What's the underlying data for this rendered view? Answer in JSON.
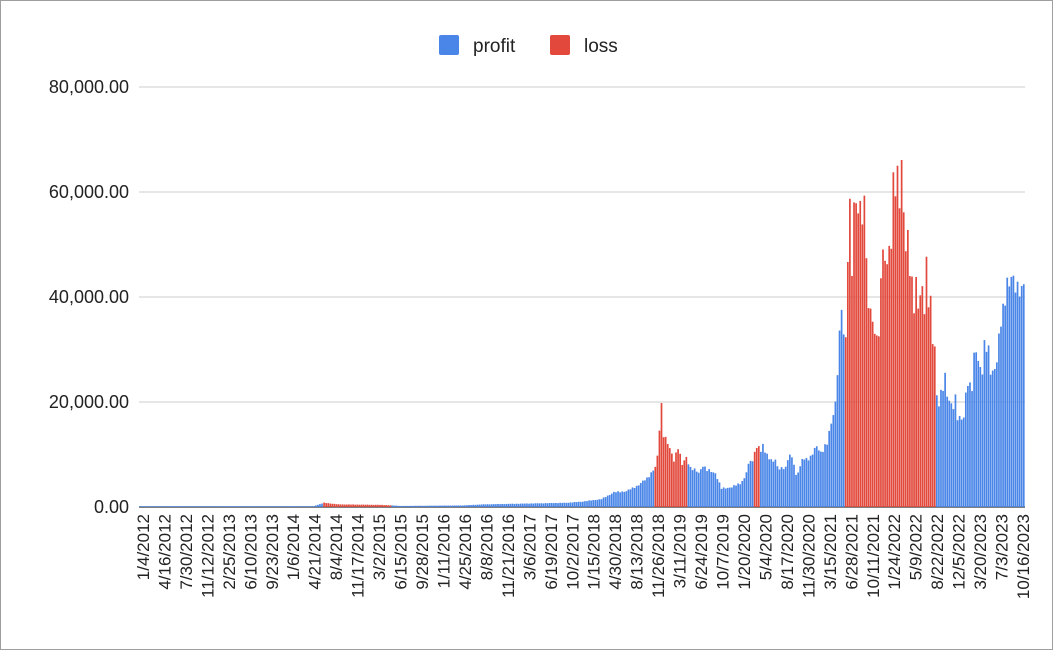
{
  "chart_data": {
    "type": "bar",
    "title": "",
    "xlabel": "",
    "ylabel": "",
    "ylim": [
      0,
      80000
    ],
    "y_ticks": [
      "0.00",
      "20,000.00",
      "40,000.00",
      "60,000.00",
      "80,000.00"
    ],
    "y_tick_values": [
      0,
      20000,
      40000,
      60000,
      80000
    ],
    "grid": true,
    "legend_position": "top-center",
    "x_tick_labels": [
      "1/4/2012",
      "4/16/2012",
      "7/30/2012",
      "11/12/2012",
      "2/25/2013",
      "6/10/2013",
      "9/23/2013",
      "1/6/2014",
      "4/21/2014",
      "8/4/2014",
      "11/17/2014",
      "3/2/2015",
      "6/15/2015",
      "9/28/2015",
      "1/11/2016",
      "4/25/2016",
      "8/8/2016",
      "11/21/2016",
      "3/6/2017",
      "6/19/2017",
      "10/2/2017",
      "1/15/2018",
      "4/30/2018",
      "8/13/2018",
      "11/26/2018",
      "3/11/2019",
      "6/24/2019",
      "10/7/2019",
      "1/20/2020",
      "5/4/2020",
      "8/17/2020",
      "11/30/2020",
      "3/15/2021",
      "6/28/2021",
      "10/11/2021",
      "1/24/2022",
      "5/9/2022",
      "8/22/2022",
      "12/5/2022",
      "3/20/2023",
      "7/3/2023",
      "10/16/2023"
    ],
    "series": [
      {
        "name": "profit",
        "color": "#4a86e8"
      },
      {
        "name": "loss",
        "color": "#e2483b"
      }
    ],
    "weekly_data": {
      "start_date": "2012-01-04",
      "interval_days": 7,
      "points": [
        [
          0,
          50,
          "profit"
        ],
        [
          84,
          80,
          "profit"
        ],
        [
          85,
          300,
          "profit"
        ],
        [
          89,
          800,
          "loss"
        ],
        [
          96,
          500,
          "loss"
        ],
        [
          117,
          400,
          "loss"
        ],
        [
          122,
          300,
          "profit"
        ],
        [
          126,
          200,
          "profit"
        ],
        [
          156,
          300,
          "profit"
        ],
        [
          166,
          500,
          "profit"
        ],
        [
          206,
          800,
          "profit"
        ],
        [
          213,
          1000,
          "profit"
        ],
        [
          223,
          1500,
          "profit"
        ],
        [
          229,
          2800,
          "profit"
        ],
        [
          235,
          3000,
          "profit"
        ],
        [
          241,
          4200,
          "profit"
        ],
        [
          245,
          5500,
          "profit"
        ],
        [
          248,
          7000,
          "profit"
        ],
        [
          249,
          7500,
          "loss"
        ],
        [
          250,
          9500,
          "loss"
        ],
        [
          251,
          15000,
          "loss"
        ],
        [
          252,
          19500,
          "loss"
        ],
        [
          253,
          14000,
          "loss"
        ],
        [
          256,
          11000,
          "loss"
        ],
        [
          258,
          9000,
          "loss"
        ],
        [
          260,
          11500,
          "loss"
        ],
        [
          262,
          8000,
          "loss"
        ],
        [
          264,
          9500,
          "loss"
        ],
        [
          265,
          8500,
          "profit"
        ],
        [
          266,
          7500,
          "profit"
        ],
        [
          270,
          6500,
          "profit"
        ],
        [
          272,
          8000,
          "profit"
        ],
        [
          274,
          7000,
          "profit"
        ],
        [
          278,
          6500,
          "profit"
        ],
        [
          280,
          4500,
          "profit"
        ],
        [
          281,
          3500,
          "profit"
        ],
        [
          286,
          3800,
          "profit"
        ],
        [
          290,
          4500,
          "profit"
        ],
        [
          292,
          5500,
          "profit"
        ],
        [
          295,
          9000,
          "profit"
        ],
        [
          296,
          8500,
          "profit"
        ],
        [
          297,
          11000,
          "loss"
        ],
        [
          299,
          11500,
          "loss"
        ],
        [
          300,
          10500,
          "profit"
        ],
        [
          301,
          11500,
          "profit"
        ],
        [
          303,
          10000,
          "profit"
        ],
        [
          306,
          8500,
          "profit"
        ],
        [
          307,
          9000,
          "profit"
        ],
        [
          308,
          7500,
          "profit"
        ],
        [
          312,
          7500,
          "profit"
        ],
        [
          314,
          10000,
          "profit"
        ],
        [
          316,
          8500,
          "profit"
        ],
        [
          317,
          6000,
          "profit"
        ],
        [
          319,
          7500,
          "profit"
        ],
        [
          320,
          9000,
          "profit"
        ],
        [
          324,
          9500,
          "profit"
        ],
        [
          327,
          11500,
          "profit"
        ],
        [
          329,
          10500,
          "profit"
        ],
        [
          332,
          12000,
          "profit"
        ],
        [
          334,
          16000,
          "profit"
        ],
        [
          336,
          20000,
          "profit"
        ],
        [
          337,
          26000,
          "profit"
        ],
        [
          338,
          32000,
          "profit"
        ],
        [
          339,
          38000,
          "profit"
        ],
        [
          340,
          32000,
          "profit"
        ],
        [
          341,
          33000,
          "loss"
        ],
        [
          342,
          48000,
          "loss"
        ],
        [
          343,
          58000,
          "loss"
        ],
        [
          344,
          45000,
          "loss"
        ],
        [
          345,
          55000,
          "loss"
        ],
        [
          346,
          59000,
          "loss"
        ],
        [
          347,
          55000,
          "loss"
        ],
        [
          348,
          60000,
          "loss"
        ],
        [
          349,
          55000,
          "loss"
        ],
        [
          350,
          58000,
          "loss"
        ],
        [
          351,
          48000,
          "loss"
        ],
        [
          352,
          36000,
          "loss"
        ],
        [
          353,
          39000,
          "loss"
        ],
        [
          354,
          35000,
          "loss"
        ],
        [
          356,
          33000,
          "loss"
        ],
        [
          357,
          31500,
          "loss"
        ],
        [
          358,
          44000,
          "loss"
        ],
        [
          359,
          47000,
          "loss"
        ],
        [
          360,
          49000,
          "loss"
        ],
        [
          361,
          46000,
          "loss"
        ],
        [
          362,
          51000,
          "loss"
        ],
        [
          363,
          49000,
          "loss"
        ],
        [
          364,
          61500,
          "loss"
        ],
        [
          365,
          60000,
          "loss"
        ],
        [
          366,
          63000,
          "loss"
        ],
        [
          367,
          60000,
          "loss"
        ],
        [
          368,
          65500,
          "loss"
        ],
        [
          369,
          57000,
          "loss"
        ],
        [
          370,
          48000,
          "loss"
        ],
        [
          371,
          51000,
          "loss"
        ],
        [
          372,
          45000,
          "loss"
        ],
        [
          373,
          43000,
          "loss"
        ],
        [
          374,
          39000,
          "loss"
        ],
        [
          375,
          43000,
          "loss"
        ],
        [
          376,
          38000,
          "loss"
        ],
        [
          378,
          41000,
          "loss"
        ],
        [
          379,
          38000,
          "loss"
        ],
        [
          380,
          47000,
          "loss"
        ],
        [
          381,
          40000,
          "loss"
        ],
        [
          382,
          39000,
          "loss"
        ],
        [
          383,
          31000,
          "loss"
        ],
        [
          384,
          30000,
          "loss"
        ],
        [
          385,
          21000,
          "profit"
        ],
        [
          386,
          20000,
          "profit"
        ],
        [
          387,
          22000,
          "profit"
        ],
        [
          388,
          23000,
          "profit"
        ],
        [
          389,
          24500,
          "profit"
        ],
        [
          390,
          21000,
          "profit"
        ],
        [
          391,
          20000,
          "profit"
        ],
        [
          393,
          19500,
          "profit"
        ],
        [
          394,
          21000,
          "profit"
        ],
        [
          395,
          17000,
          "profit"
        ],
        [
          396,
          16500,
          "profit"
        ],
        [
          398,
          17000,
          "profit"
        ],
        [
          399,
          22000,
          "profit"
        ],
        [
          400,
          24000,
          "profit"
        ],
        [
          401,
          23000,
          "profit"
        ],
        [
          402,
          22500,
          "profit"
        ],
        [
          403,
          28000,
          "profit"
        ],
        [
          404,
          30000,
          "profit"
        ],
        [
          405,
          28000,
          "profit"
        ],
        [
          406,
          27000,
          "profit"
        ],
        [
          407,
          26000,
          "profit"
        ],
        [
          408,
          30500,
          "profit"
        ],
        [
          410,
          29500,
          "profit"
        ],
        [
          411,
          26000,
          "profit"
        ],
        [
          413,
          26500,
          "profit"
        ],
        [
          414,
          28000,
          "profit"
        ],
        [
          416,
          35000,
          "profit"
        ],
        [
          417,
          37500,
          "profit"
        ],
        [
          418,
          40000,
          "profit"
        ],
        [
          419,
          44000,
          "profit"
        ],
        [
          420,
          42000,
          "profit"
        ],
        [
          421,
          44000,
          "profit"
        ],
        [
          422,
          42000,
          "profit"
        ]
      ]
    }
  }
}
